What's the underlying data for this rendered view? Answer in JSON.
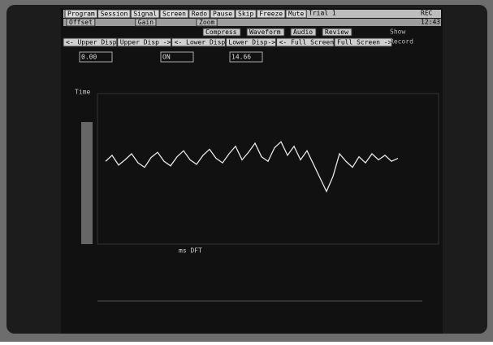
{
  "menu": [
    "Program",
    "Session",
    "Signal",
    "Screen",
    "Redo",
    "Pause",
    "Skip",
    "Freeze",
    "Mute"
  ],
  "trial": "Trial 1",
  "status": "REC",
  "toolbar": [
    "Offset",
    "Gain",
    "Zoom"
  ],
  "clock": "12:43",
  "buttons": [
    "Compress",
    "Waveform",
    "Audio",
    "Review"
  ],
  "display_buttons": [
    "<- Upper Disp",
    "Upper Disp ->",
    "<- Lower Disp",
    "Lower Disp->",
    "<- Full Screen",
    "Full Screen ->"
  ],
  "side": [
    "Show",
    "Record"
  ],
  "readouts": [
    "0.00",
    "ON",
    "14.66"
  ],
  "plot": {
    "ylabel": "Time",
    "xlabel": "ms DFT",
    "ylim": [
      -1,
      1
    ],
    "values": [
      0.1,
      0.18,
      0.05,
      0.12,
      0.2,
      0.08,
      0.02,
      0.15,
      0.22,
      0.1,
      0.04,
      0.16,
      0.24,
      0.12,
      0.06,
      0.18,
      0.26,
      0.14,
      0.08,
      0.2,
      0.3,
      0.12,
      0.22,
      0.34,
      0.16,
      0.1,
      0.28,
      0.36,
      0.18,
      0.3,
      0.12,
      0.24,
      0.06,
      -0.12,
      -0.3,
      -0.1,
      0.2,
      0.1,
      0.02,
      0.16,
      0.08,
      0.2,
      0.12,
      0.18,
      0.1,
      0.14
    ]
  }
}
